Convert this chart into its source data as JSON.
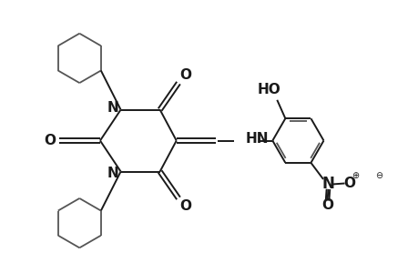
{
  "background_color": "#ffffff",
  "line_color": "#1a1a1a",
  "line_width": 1.4,
  "font_size": 10,
  "figsize": [
    4.6,
    3.0
  ],
  "dpi": 100,
  "xlim": [
    0,
    10
  ],
  "ylim": [
    0,
    6.5
  ],
  "ring_color": "#555555",
  "ring_lw": 1.3
}
